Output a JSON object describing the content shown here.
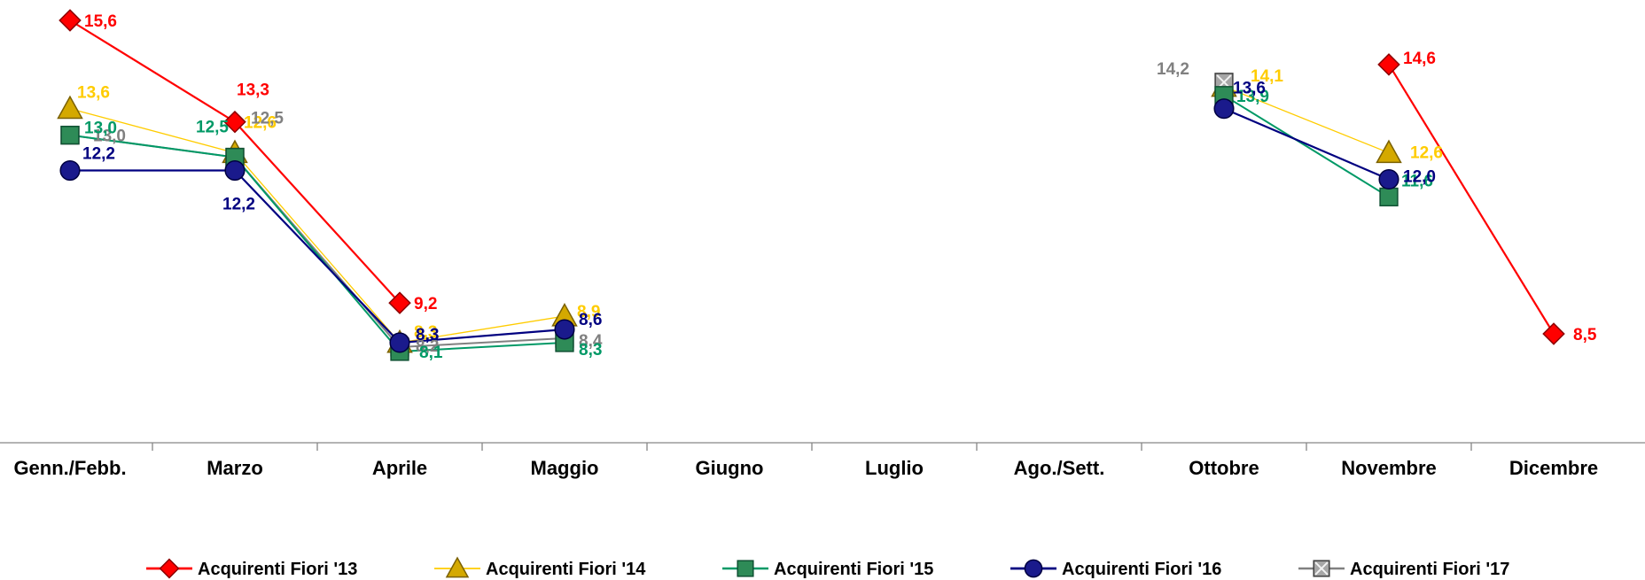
{
  "chart_data": {
    "type": "line",
    "categories": [
      "Genn./Febb.",
      "Marzo",
      "Aprile",
      "Maggio",
      "Giugno",
      "Luglio",
      "Ago./Sett.",
      "Ottobre",
      "Novembre",
      "Dicembre"
    ],
    "series": [
      {
        "name": "Acquirenti Fiori '13",
        "color": "#ff0000",
        "marker": "diamond",
        "values": [
          15.6,
          13.3,
          9.2,
          null,
          null,
          null,
          null,
          null,
          14.6,
          8.5
        ],
        "labels": [
          "15,6",
          "13,3",
          "9,2",
          "",
          "",
          "",
          "",
          "",
          "14,6",
          "8,5"
        ]
      },
      {
        "name": "Acquirenti Fiori '14",
        "color": "#ffcc00",
        "marker": "triangle",
        "values": [
          13.6,
          12.6,
          8.3,
          8.9,
          null,
          null,
          null,
          14.1,
          12.6,
          null
        ],
        "labels": [
          "13,6",
          "12,6",
          "8,3",
          "8,9",
          "",
          "",
          "",
          "14,1",
          "12,6",
          ""
        ]
      },
      {
        "name": "Acquirenti Fiori '15",
        "color": "#009966",
        "marker": "square",
        "values": [
          13.0,
          12.5,
          8.1,
          8.3,
          null,
          null,
          null,
          13.9,
          11.6,
          null
        ],
        "labels": [
          "13,0",
          "12,5",
          "8,1",
          "8,3",
          "",
          "",
          "",
          "13,9",
          "11,6",
          ""
        ]
      },
      {
        "name": "Acquirenti Fiori '16",
        "color": "#000080",
        "marker": "circle",
        "values": [
          12.2,
          12.2,
          8.3,
          8.6,
          null,
          null,
          null,
          13.6,
          12.0,
          null
        ],
        "labels": [
          "12,2",
          "12,2",
          "8,3",
          "8,6",
          "",
          "",
          "",
          "13,6",
          "12,0",
          ""
        ]
      },
      {
        "name": "Acquirenti Fiori '17",
        "color": "#808080",
        "marker": "square-x",
        "values": [
          13.0,
          12.5,
          8.2,
          8.4,
          null,
          null,
          null,
          14.2,
          null,
          null
        ],
        "labels": [
          "13,0",
          "12,5",
          "8,2",
          "8,4",
          "",
          "",
          "",
          "14,2",
          "",
          ""
        ]
      }
    ],
    "ylim": [
      5.5,
      16.2
    ],
    "grid": false,
    "legend": "bottom",
    "xlabel": "",
    "ylabel": ""
  }
}
